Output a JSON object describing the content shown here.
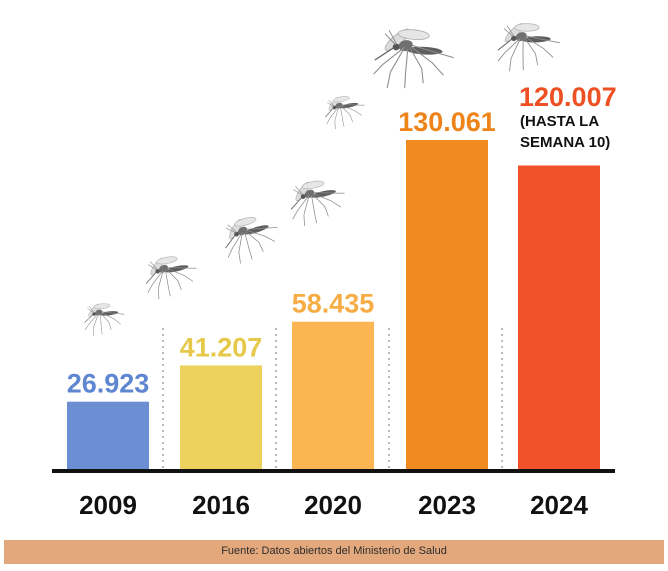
{
  "chart_data": {
    "type": "bar",
    "title": "",
    "xlabel": "",
    "ylabel": "",
    "ylim": [
      0,
      130061
    ],
    "grid": false,
    "legend": "none",
    "categories": [
      "2009",
      "2016",
      "2020",
      "2023",
      "2024"
    ],
    "values": [
      26923,
      41207,
      58435,
      130061,
      120007
    ],
    "value_labels": [
      "26.923",
      "41.207",
      "58.435",
      "130.061",
      "120.007"
    ],
    "annotations": [
      {
        "category": "2024",
        "lines": [
          "(HASTA LA",
          "SEMANA 10)"
        ]
      }
    ],
    "colors": [
      "#6b8fd2",
      "#ecd15c",
      "#fbb653",
      "#f28a22",
      "#f2522a"
    ],
    "value_label_colors": [
      "#5f86d0",
      "#e6c94a",
      "#f7ad46",
      "#ee8419",
      "#ee5023"
    ],
    "separator_color": "#b9b9b9",
    "axis_color": "#111111",
    "decoration_icon": "mosquito-icon"
  },
  "footer": {
    "source": "Fuente: Datos abiertos del Ministerio de Salud"
  }
}
